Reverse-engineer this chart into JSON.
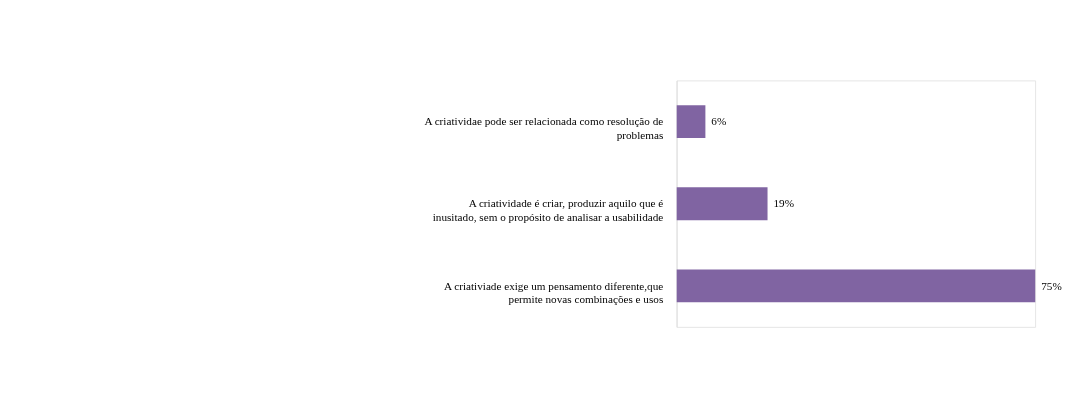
{
  "chart_data": {
    "type": "bar",
    "orientation": "horizontal",
    "categories": [
      "A criatividae pode ser relacionada como resolução de problemas",
      "A criatividade é criar, produzir aquilo que é inusitado, sem o propósito de analisar a usabilidade",
      "A criativiade exige um pensamento diferente,que permite novas combinações e usos"
    ],
    "values": [
      6,
      19,
      75
    ],
    "value_labels": [
      "6%",
      "19%",
      "75%"
    ],
    "color": "#8064a2"
  }
}
